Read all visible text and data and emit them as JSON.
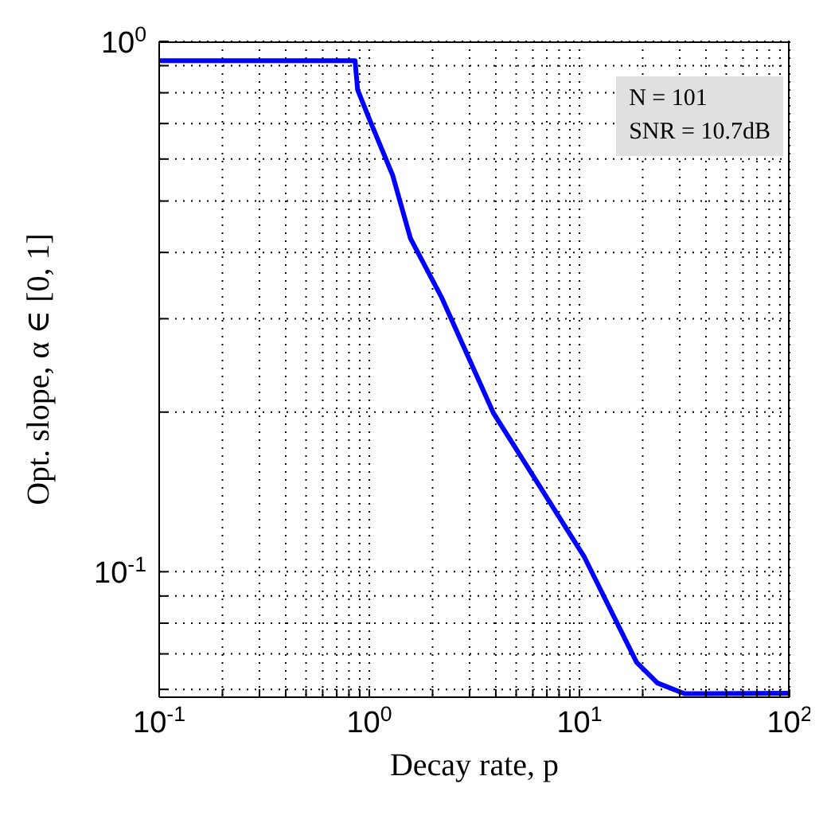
{
  "chart_data": {
    "type": "line",
    "xlabel": "Decay rate, p",
    "ylabel": "Opt. slope, α ∈ [0, 1]",
    "annotations": [
      "N = 101",
      "SNR = 10.7dB"
    ],
    "log": "xy",
    "grid": true,
    "marker": "none",
    "line_style": "solid",
    "xlim": [
      0.1,
      100
    ],
    "ylim": [
      0.058,
      1
    ],
    "xticks": [
      {
        "value": 0.1,
        "label": "10$^{-1}$"
      },
      {
        "value": 0.2,
        "label": null
      },
      {
        "value": 0.3,
        "label": null
      },
      {
        "value": 0.4,
        "label": null
      },
      {
        "value": 0.5,
        "label": null
      },
      {
        "value": 0.6,
        "label": null
      },
      {
        "value": 0.7,
        "label": null
      },
      {
        "value": 0.8,
        "label": null
      },
      {
        "value": 0.9,
        "label": null
      },
      {
        "value": 1,
        "label": "10$^{0}$"
      },
      {
        "value": 2,
        "label": null
      },
      {
        "value": 3,
        "label": null
      },
      {
        "value": 4,
        "label": null
      },
      {
        "value": 5,
        "label": null
      },
      {
        "value": 6,
        "label": null
      },
      {
        "value": 7,
        "label": null
      },
      {
        "value": 8,
        "label": null
      },
      {
        "value": 9,
        "label": null
      },
      {
        "value": 10,
        "label": "10$^{1}$"
      },
      {
        "value": 20,
        "label": null
      },
      {
        "value": 30,
        "label": null
      },
      {
        "value": 40,
        "label": null
      },
      {
        "value": 50,
        "label": null
      },
      {
        "value": 60,
        "label": null
      },
      {
        "value": 70,
        "label": null
      },
      {
        "value": 80,
        "label": null
      },
      {
        "value": 90,
        "label": null
      },
      {
        "value": 100,
        "label": "10$^{2}$"
      }
    ],
    "yticks": [
      {
        "value": 0.06,
        "label": null
      },
      {
        "value": 0.07,
        "label": null
      },
      {
        "value": 0.08,
        "label": null
      },
      {
        "value": 0.09,
        "label": null
      },
      {
        "value": 0.1,
        "label": "10$^{-1}$"
      },
      {
        "value": 0.2,
        "label": null
      },
      {
        "value": 0.3,
        "label": null
      },
      {
        "value": 0.4,
        "label": null
      },
      {
        "value": 0.5,
        "label": null
      },
      {
        "value": 0.6,
        "label": null
      },
      {
        "value": 0.7,
        "label": null
      },
      {
        "value": 0.8,
        "label": null
      },
      {
        "value": 0.9,
        "label": null
      },
      {
        "value": 1,
        "label": "10$^{0}$"
      }
    ],
    "series": [
      {
        "color": "#0000ff",
        "x": [
          0.1,
          0.855,
          0.88,
          1.02,
          1.29,
          1.57,
          2.2,
          3.9,
          10.5,
          18.7,
          23.5,
          31.6,
          40,
          100
        ],
        "values": [
          0.92,
          0.92,
          0.81,
          0.7,
          0.56,
          0.425,
          0.33,
          0.199,
          0.107,
          0.0675,
          0.0617,
          0.0589,
          0.0589,
          0.059
        ]
      }
    ]
  }
}
